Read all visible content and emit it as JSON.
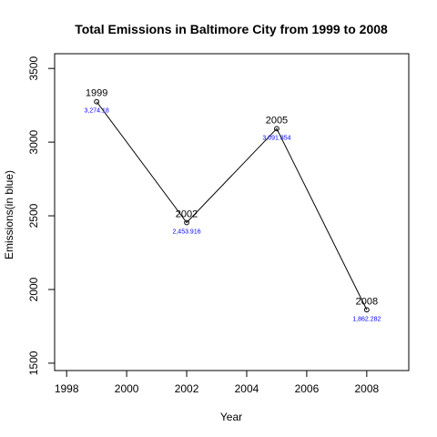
{
  "chart_data": {
    "type": "line",
    "title": "Total Emissions in Baltimore City from 1999 to 2008",
    "xlabel": "Year",
    "ylabel": "Emissions(in blue)",
    "x": [
      1999,
      2002,
      2005,
      2008
    ],
    "series": [
      {
        "values": [
          3274.18,
          2453.916,
          3091.354,
          1862.282
        ]
      }
    ],
    "point_labels": [
      "1999",
      "2002",
      "2005",
      "2008"
    ],
    "value_labels": [
      "3,274.18",
      "2,453.916",
      "3,091.354",
      "1,862.282"
    ],
    "xlim": [
      1997.6,
      2009.4
    ],
    "ylim": [
      1450,
      3600
    ],
    "x_ticks": [
      1998,
      2000,
      2002,
      2004,
      2006,
      2008
    ],
    "x_tick_labels": [
      "1998",
      "2000",
      "2002",
      "2004",
      "2006",
      "2008"
    ],
    "y_ticks": [
      1500,
      2000,
      2500,
      3000,
      3500
    ],
    "y_tick_labels": [
      "1500",
      "2000",
      "2500",
      "3000",
      "3500"
    ],
    "grid": false,
    "line_color": "#000000",
    "value_label_color": "#0000ff"
  }
}
